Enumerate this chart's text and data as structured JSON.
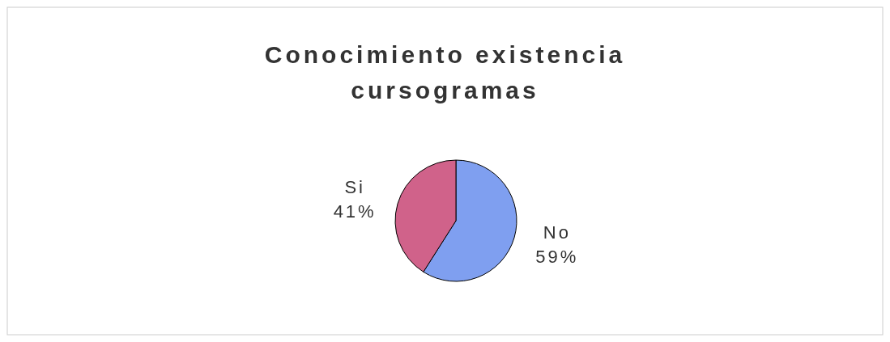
{
  "chart_data": {
    "type": "pie",
    "title": "Conocimiento existencia cursogramas",
    "categories": [
      "No",
      "Si"
    ],
    "values": [
      59,
      41
    ],
    "colors": [
      "#7f9ff0",
      "#d0628a"
    ],
    "value_labels": [
      "59%",
      "41%"
    ]
  }
}
